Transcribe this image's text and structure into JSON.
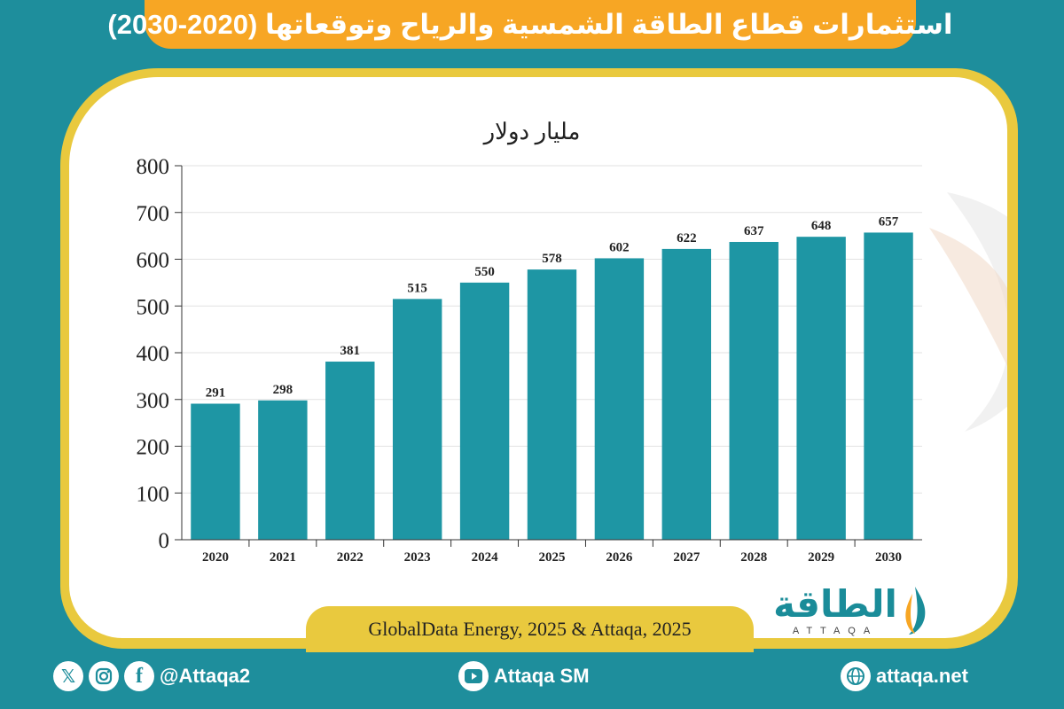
{
  "header": {
    "title": "استثمارات قطاع الطاقة الشمسية والرياح وتوقعاتها (2020-2030)"
  },
  "chart_data": {
    "type": "bar",
    "ylabel": "مليار دولار",
    "categories": [
      "2020",
      "2021",
      "2022",
      "2023",
      "2024",
      "2025",
      "2026",
      "2027",
      "2028",
      "2029",
      "2030"
    ],
    "values": [
      291,
      298,
      381,
      515,
      550,
      578,
      602,
      622,
      637,
      648,
      657
    ],
    "ylim": [
      0,
      800
    ],
    "yticks": [
      0,
      100,
      200,
      300,
      400,
      500,
      600,
      700,
      800
    ],
    "grid": true,
    "bar_color": "#1e96a4"
  },
  "source": {
    "text": "GlobalData Energy, 2025 & Attaqa, 2025"
  },
  "logo": {
    "text": "الطاقة",
    "subtitle": "ATTAQA"
  },
  "footer": {
    "social_handle": "@Attaqa2",
    "youtube_label": "Attaqa SM",
    "website": "attaqa.net",
    "icons": [
      "x-icon",
      "instagram-icon",
      "facebook-icon",
      "youtube-icon",
      "globe-icon"
    ]
  },
  "colors": {
    "background": "#1e8e9c",
    "banner": "#f7a624",
    "frame": "#e9c93e",
    "bar": "#1e96a4"
  }
}
